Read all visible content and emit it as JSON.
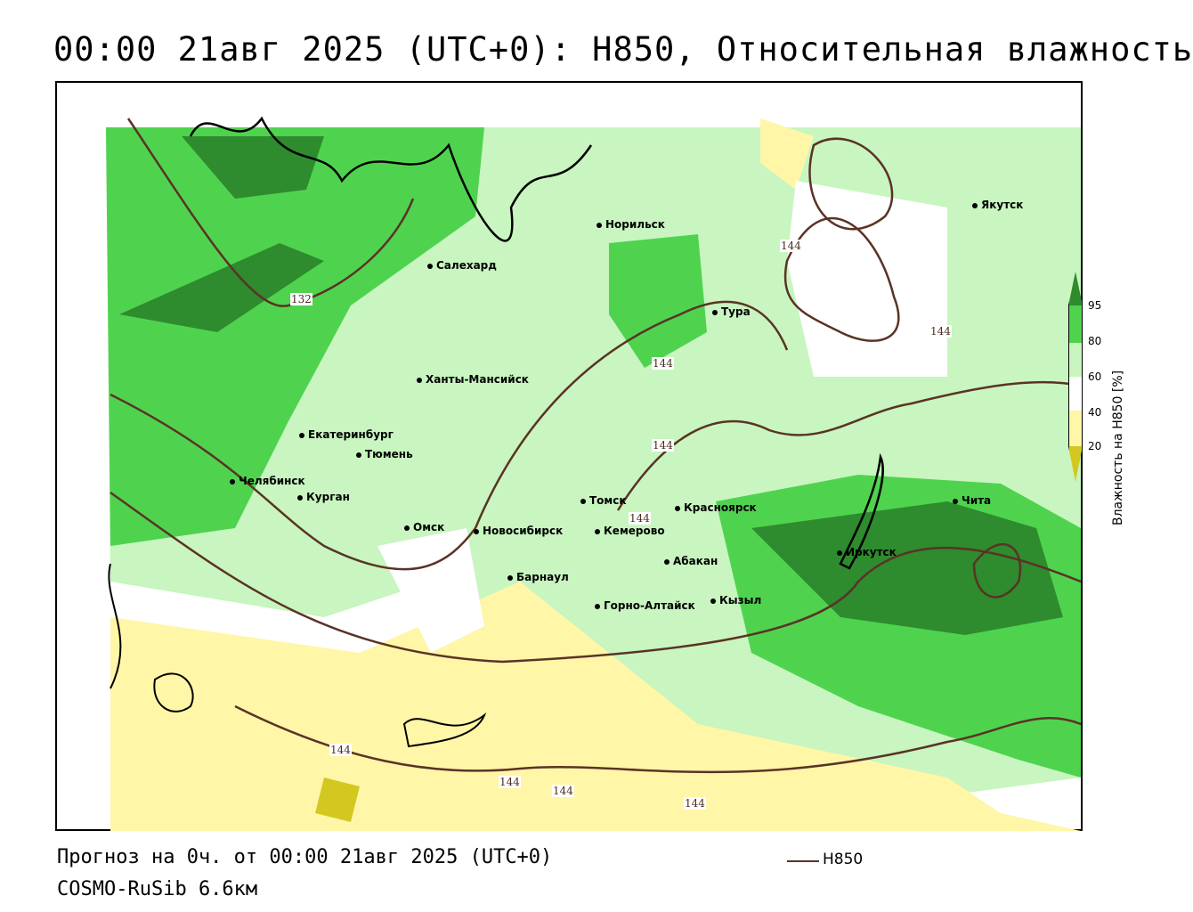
{
  "header": {
    "title": "00:00 21авг 2025 (UTC+0): H850, Относительная влажность"
  },
  "footer": {
    "forecast": "Прогноз на 0ч. от 00:00 21авг 2025 (UTC+0)",
    "model": "COSMO-RuSib 6.6км"
  },
  "legend": {
    "contour_label": "H850",
    "contour_color": "#5a3326"
  },
  "colorbar": {
    "title": "Влажность на H850 [%]",
    "ticks": [
      "95",
      "80",
      "60",
      "40",
      "20"
    ],
    "colors": [
      "#2e8b2e",
      "#4fd34f",
      "#c8f5c0",
      "#ffffff",
      "#fff6a8",
      "#d4c820"
    ]
  },
  "contour_labels": [
    "132",
    "144",
    "144",
    "144",
    "144",
    "144",
    "144",
    "144",
    "144",
    "144"
  ],
  "cities": [
    {
      "name": "Салехард"
    },
    {
      "name": "Норильск"
    },
    {
      "name": "Якутск"
    },
    {
      "name": "Тура"
    },
    {
      "name": "Ханты-Мансийск"
    },
    {
      "name": "Екатеринбург"
    },
    {
      "name": "Тюмень"
    },
    {
      "name": "Челябинск"
    },
    {
      "name": "Курган"
    },
    {
      "name": "Омск"
    },
    {
      "name": "Новосибирск"
    },
    {
      "name": "Томск"
    },
    {
      "name": "Кемерово"
    },
    {
      "name": "Красноярск"
    },
    {
      "name": "Барнаул"
    },
    {
      "name": "Абакан"
    },
    {
      "name": "Горно-Алтайск"
    },
    {
      "name": "Кызыл"
    },
    {
      "name": "Иркутск"
    },
    {
      "name": "Чита"
    }
  ]
}
